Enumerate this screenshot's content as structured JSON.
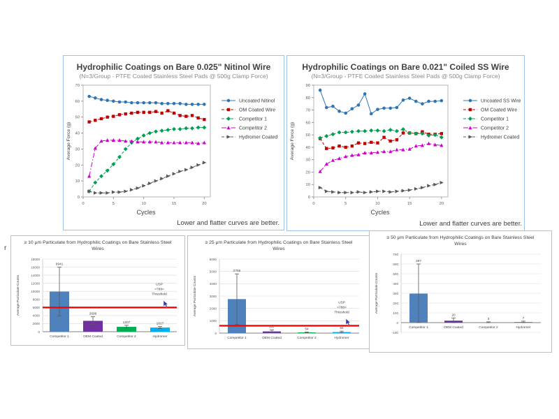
{
  "page": {
    "background": "#ffffff",
    "stray_mark": "r"
  },
  "colors": {
    "top_box_border": "#9DC3E6",
    "bottom_box_border": "#BFBFBF",
    "plot_frame": "#A6A6A6",
    "grid": "#D9D9D9",
    "axis": "#808080",
    "tick_text": "#595959",
    "title_text": "#404040",
    "threshold_red": "#FF0000",
    "error_bar": "#595959",
    "cursor_blue": "#3A3AA8"
  },
  "chart_data": [
    {
      "type": "line",
      "title": "Hydrophilic Coatings on Bare 0.025\" Nitinol Wire",
      "subtitle": "(N=3/Group - PTFE Coated Stainless Steel Pads @ 500g Clamp Force)",
      "xlabel": "Cycles",
      "ylabel": "Average Force (g)",
      "note": "Lower and flatter curves are better.",
      "xlim": [
        0,
        21
      ],
      "ylim": [
        0,
        70
      ],
      "ytick_step": 10,
      "xticks": [
        0,
        5,
        10,
        15,
        20
      ],
      "x": [
        1,
        2,
        3,
        4,
        5,
        6,
        7,
        8,
        9,
        10,
        11,
        12,
        13,
        14,
        15,
        16,
        17,
        18,
        19,
        20
      ],
      "series": [
        {
          "name": "Uncoated Nitinol",
          "color": "#2E75B6",
          "marker": "circle",
          "dash": "solid",
          "values": [
            63,
            62,
            61,
            60.5,
            60,
            59.5,
            59.5,
            59,
            59,
            59,
            59,
            59,
            58.5,
            58.5,
            58.5,
            58.5,
            58,
            58,
            58,
            58
          ]
        },
        {
          "name": "OM Coated Wire",
          "color": "#C00000",
          "marker": "square",
          "dash": "dash",
          "values": [
            47,
            48,
            49,
            50,
            50.5,
            51.5,
            52,
            52.5,
            53,
            53,
            53,
            53.5,
            52.5,
            54,
            52.5,
            51,
            50.5,
            51,
            49.5,
            48.5
          ]
        },
        {
          "name": "Competitor 1",
          "color": "#00A050",
          "marker": "diamond",
          "dash": "dash",
          "values": [
            3.5,
            9,
            13,
            16.5,
            20.5,
            25,
            30,
            34,
            36.5,
            38.5,
            40,
            41,
            41.5,
            42,
            42.5,
            42.5,
            43,
            43,
            43.5,
            43.5
          ]
        },
        {
          "name": "Competitor 2",
          "color": "#CC00CC",
          "marker": "triangle",
          "dash": "dashdot",
          "values": [
            13,
            30.5,
            35,
            35.5,
            35.5,
            35.5,
            35,
            35,
            34.5,
            34.5,
            34.5,
            34.5,
            34,
            34,
            34,
            34,
            34,
            34,
            33.5,
            34
          ]
        },
        {
          "name": "Hydromer Coated",
          "color": "#595959",
          "marker": "arrow",
          "dash": "dash",
          "values": [
            3.5,
            2.5,
            2.5,
            2.5,
            3,
            3,
            3.5,
            4.5,
            5.5,
            7,
            8.5,
            10,
            11.5,
            13,
            14.5,
            16,
            17,
            18.5,
            20,
            21.5
          ]
        }
      ]
    },
    {
      "type": "line",
      "title": "Hydrophilic Coatings on Bare 0.021\" Coiled SS Wire",
      "subtitle": "(N=3/Group - PTFE Coated Stainless Steel Pads @ 500g Clamp Force)",
      "xlabel": "Cycles",
      "ylabel": "Average Force (g)",
      "note": "Lower and flatter curves are better.",
      "xlim": [
        0,
        21
      ],
      "ylim": [
        0,
        90
      ],
      "ytick_step": 10,
      "xticks": [
        0,
        5,
        10,
        15,
        20
      ],
      "x": [
        1,
        2,
        3,
        4,
        5,
        6,
        7,
        8,
        9,
        10,
        11,
        12,
        13,
        14,
        15,
        16,
        17,
        18,
        19,
        20
      ],
      "series": [
        {
          "name": "Uncoated SS Wire",
          "color": "#2E75B6",
          "marker": "circle",
          "dash": "solid",
          "values": [
            86,
            72,
            73,
            69,
            67.5,
            71,
            74,
            83,
            67,
            70.5,
            71.5,
            71.5,
            72,
            78,
            79.5,
            77,
            75,
            77,
            77,
            77.5
          ]
        },
        {
          "name": "OM Coated Wire",
          "color": "#C00000",
          "marker": "square",
          "dash": "dash",
          "values": [
            47,
            39,
            39.5,
            41,
            40,
            41,
            43.5,
            43,
            44,
            43.5,
            48,
            45,
            46,
            51.5,
            51.5,
            51,
            52.5,
            50.5,
            50.5,
            51
          ]
        },
        {
          "name": "Competitor 1",
          "color": "#00A050",
          "marker": "diamond",
          "dash": "dash",
          "values": [
            47.5,
            49,
            50.5,
            52,
            52,
            52.5,
            53,
            53,
            53.5,
            53.5,
            53,
            54,
            53,
            54.5,
            51.5,
            51,
            51,
            49.5,
            50,
            48
          ]
        },
        {
          "name": "Competitor 2",
          "color": "#CC00CC",
          "marker": "triangle",
          "dash": "dashdot",
          "values": [
            20.5,
            26.5,
            29.5,
            31,
            32.5,
            33.5,
            34,
            35.5,
            35.5,
            36,
            36.5,
            36.5,
            38,
            38,
            38.5,
            41,
            41.5,
            43,
            42,
            41.5
          ]
        },
        {
          "name": "Hydromer Coated",
          "color": "#595959",
          "marker": "arrow",
          "dash": "dash",
          "values": [
            7.5,
            4.5,
            4,
            3.5,
            3.5,
            3.5,
            4,
            3.5,
            4,
            4.5,
            4.5,
            4,
            4.5,
            5,
            5.5,
            6.5,
            7.5,
            9,
            10,
            11.5
          ]
        }
      ]
    },
    {
      "type": "bar",
      "title": "≥ 10 μm Particulate from Hydrophilic Coatings on Bare Stainless Steel Wires",
      "ylabel": "Average Particulate Counts",
      "ylim": [
        0,
        18000
      ],
      "ytick_step": 2000,
      "categories": [
        "Competitor 1",
        "OEM Coated",
        "Competitor 2",
        "Hydromer"
      ],
      "values": [
        9941,
        2699,
        1207,
        1027
      ],
      "value_labels": [
        "9941",
        "2699",
        "1207",
        "1027"
      ],
      "bar_colors": [
        "#4F81BD",
        "#7030A0",
        "#00B050",
        "#00B0F0"
      ],
      "error_high": [
        16000,
        3700,
        1600,
        1300
      ],
      "error_low": [
        3900,
        1800,
        900,
        800
      ],
      "threshold": {
        "value": 6000,
        "label_lines": [
          "USP",
          "<788>",
          "Threshold"
        ],
        "color": "#FF0000"
      },
      "cursor": true
    },
    {
      "type": "bar",
      "title": "≥ 25 μm Particulate from Hydrophilic Coatings on Bare Stainless Steel Wires",
      "ylabel": "Average Particulate Counts",
      "ylim": [
        0,
        6000
      ],
      "ytick_step": 1000,
      "categories": [
        "Competitor 1",
        "OEM Coated",
        "Competitor 2",
        "Hydromer"
      ],
      "values": [
        2755,
        137,
        54,
        84
      ],
      "value_labels": [
        "2755",
        "137",
        "54",
        "84"
      ],
      "bar_colors": [
        "#4F81BD",
        "#7030A0",
        "#00B050",
        "#00B0F0"
      ],
      "error_high": [
        4800,
        260,
        90,
        160
      ],
      "error_low": [
        700,
        40,
        20,
        30
      ],
      "threshold": {
        "value": 600,
        "label_lines": [
          "USP",
          "<788>",
          "Threshold"
        ],
        "color": "#FF0000"
      },
      "cursor": true
    },
    {
      "type": "bar",
      "title": "≥ 50 μm Particulate from Hydrophilic Coatings on Bare Stainless Steel Wires",
      "ylabel": "Average Particulate Counts",
      "ylim": [
        -100,
        700
      ],
      "ytick_step": 100,
      "categories": [
        "Competitor 1",
        "OEM Coated",
        "Competitor 2",
        "Hydromer"
      ],
      "values": [
        297,
        20,
        3,
        7
      ],
      "value_labels": [
        "297",
        "20",
        "3",
        "7"
      ],
      "bar_colors": [
        "#4F81BD",
        "#7030A0",
        "#00B050",
        "#00B0F0"
      ],
      "error_high": [
        600,
        48,
        8,
        15
      ],
      "error_low": [
        0,
        0,
        0,
        0
      ],
      "threshold": null,
      "cursor": false
    }
  ]
}
